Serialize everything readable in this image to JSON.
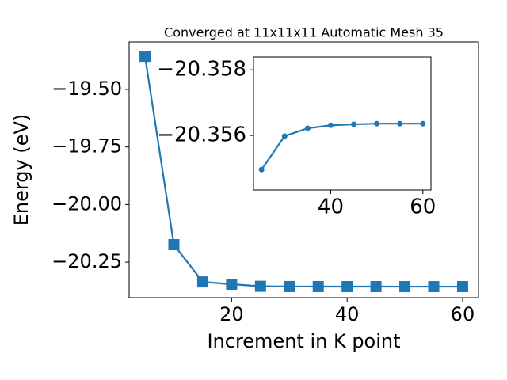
{
  "chart_data": [
    {
      "type": "line",
      "title": "Converged at 11x11x11 Automatic Mesh 35",
      "xlabel": "Increment in K point",
      "ylabel": "Energy (eV)",
      "x": [
        5,
        10,
        15,
        20,
        25,
        30,
        35,
        40,
        45,
        50,
        55,
        60
      ],
      "series": [
        {
          "color": "#1f77b4",
          "marker": "square",
          "values": [
            -19.356,
            -20.174,
            -20.336,
            -20.346,
            -20.355,
            -20.356,
            -20.3562,
            -20.3563,
            -20.3563,
            -20.3564,
            -20.3564,
            -20.3564
          ]
        }
      ],
      "xlim": [
        2.25,
        62.75
      ],
      "xticks": [
        20,
        40,
        60
      ],
      "ylim": [
        -20.4044,
        -19.2937
      ],
      "yticks": [
        {
          "value": -20.25,
          "label": "−20.25"
        },
        {
          "value": -20.0,
          "label": "−20.00"
        },
        {
          "value": -19.75,
          "label": "−19.75"
        },
        {
          "value": -19.5,
          "label": "−19.50"
        }
      ]
    },
    {
      "type": "line",
      "x": [
        25,
        30,
        35,
        40,
        45,
        50,
        55,
        60
      ],
      "series": [
        {
          "color": "#1f77b4",
          "marker": "circle",
          "values": [
            -20.35496,
            -20.35598,
            -20.35622,
            -20.35631,
            -20.35634,
            -20.35636,
            -20.35636,
            -20.35636
          ]
        }
      ],
      "xlim": [
        23.25,
        61.75
      ],
      "xticks": [
        40,
        60
      ],
      "ylim": [
        -20.35434,
        -20.35839
      ],
      "yticks": [
        {
          "value": -20.356,
          "label": "−20.356"
        },
        {
          "value": -20.358,
          "label": "−20.358"
        }
      ]
    }
  ]
}
